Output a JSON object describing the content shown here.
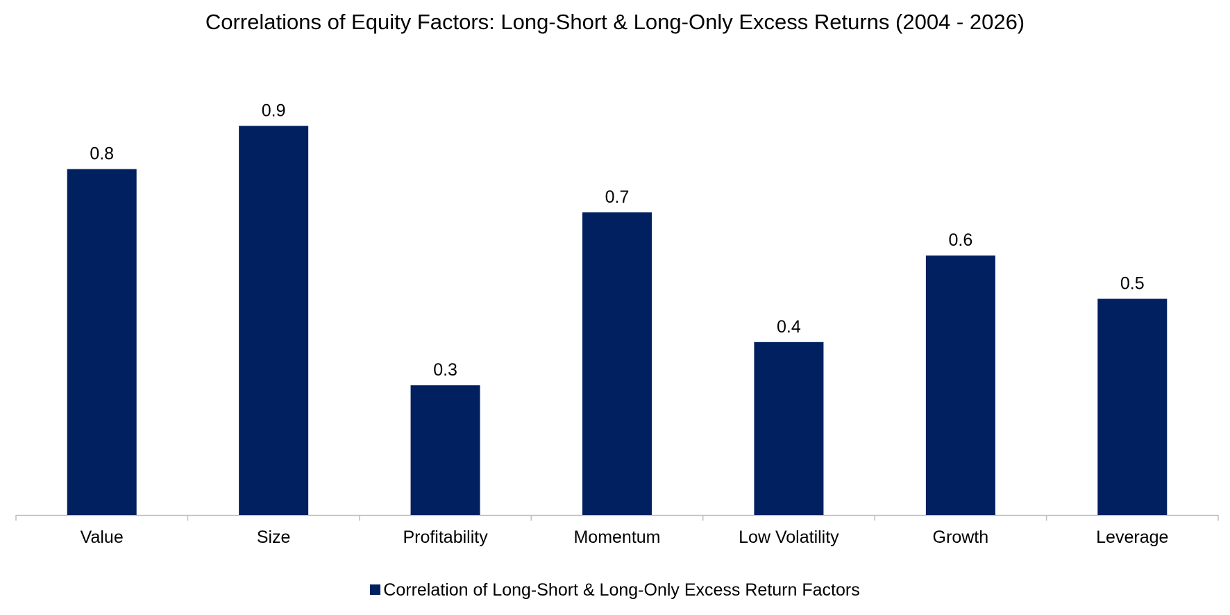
{
  "chart_data": {
    "type": "bar",
    "title": "Correlations of Equity Factors: Long-Short & Long-Only Excess Returns (2004 - 2026)",
    "categories": [
      "Value",
      "Size",
      "Profitability",
      "Momentum",
      "Low Volatility",
      "Growth",
      "Leverage"
    ],
    "series": [
      {
        "name": "Correlation of Long-Short & Long-Only Excess Return Factors",
        "values": [
          0.8,
          0.9,
          0.3,
          0.7,
          0.4,
          0.6,
          0.5
        ],
        "data_labels": [
          "0.8",
          "0.9",
          "0.3",
          "0.7",
          "0.4",
          "0.6",
          "0.5"
        ],
        "color": "#002060"
      }
    ],
    "xlabel": "",
    "ylabel": "",
    "ylim": [
      0,
      1
    ],
    "y_axis_visible": false,
    "grid": false,
    "legend_position": "bottom"
  }
}
